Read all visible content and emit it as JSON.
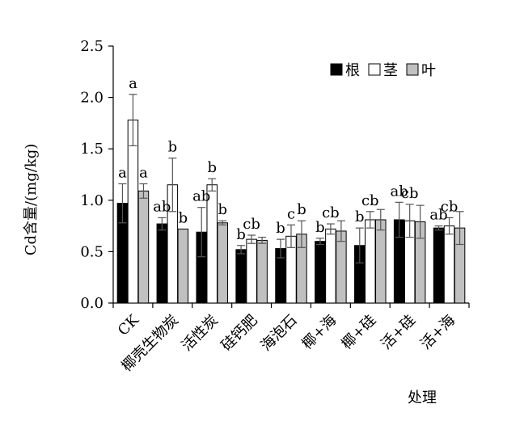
{
  "chart_data": {
    "type": "bar",
    "ylabel": "Cd含量/(mg/kg)",
    "xlabel": "处理",
    "ylim": [
      0,
      2.5
    ],
    "yticks": [
      "0.0",
      "0.5",
      "1.0",
      "1.5",
      "2.0",
      "2.5"
    ],
    "legend_position": "top-right",
    "categories": [
      "CK",
      "椰壳生物炭",
      "活性炭",
      "硅钙肥",
      "海泡石",
      "椰+海",
      "椰+硅",
      "活+硅",
      "活+海"
    ],
    "series": [
      {
        "name": "根",
        "color": "#000000",
        "values": [
          0.97,
          0.77,
          0.69,
          0.52,
          0.53,
          0.6,
          0.56,
          0.81,
          0.73
        ],
        "errors": [
          0.19,
          0.06,
          0.24,
          0.04,
          0.09,
          0.03,
          0.17,
          0.17,
          0.02
        ],
        "letters": [
          "a",
          "ab",
          "ab",
          "b",
          "b",
          "b",
          "b",
          "ab",
          "ab"
        ]
      },
      {
        "name": "茎",
        "color": "#ffffff",
        "values": [
          1.78,
          1.15,
          1.15,
          0.62,
          0.65,
          0.72,
          0.81,
          0.8,
          0.75
        ],
        "errors": [
          0.25,
          0.26,
          0.06,
          0.04,
          0.11,
          0.05,
          0.08,
          0.16,
          0.08
        ],
        "letters": [
          "a",
          "b",
          "b",
          "cb",
          "c",
          "cb",
          "cb",
          "cb",
          "cb"
        ]
      },
      {
        "name": "叶",
        "color": "#c0c0c0",
        "values": [
          1.09,
          0.72,
          0.78,
          0.61,
          0.67,
          0.7,
          0.81,
          0.79,
          0.73
        ],
        "errors": [
          0.07,
          0.0,
          0.02,
          0.03,
          0.13,
          0.1,
          0.1,
          0.16,
          0.16
        ],
        "letters": [
          "a",
          "b",
          "b",
          "",
          "b",
          "",
          "",
          "",
          ""
        ]
      }
    ]
  }
}
